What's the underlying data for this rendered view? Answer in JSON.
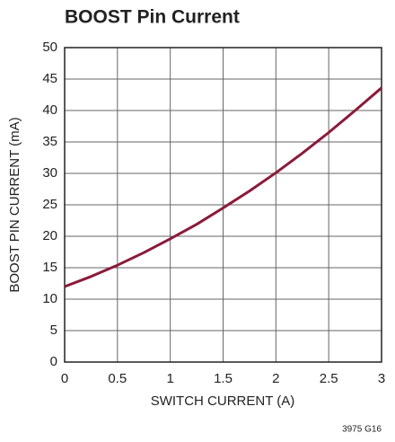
{
  "chart_data": {
    "type": "line",
    "title": "BOOST Pin Current",
    "x_label": "SWITCH CURRENT (A)",
    "y_label": "BOOST PIN CURRENT (mA)",
    "note": "3975 G16",
    "x": [
      0,
      0.25,
      0.5,
      0.75,
      1,
      1.25,
      1.5,
      1.75,
      2,
      2.25,
      2.5,
      2.75,
      3
    ],
    "values": [
      12,
      13.6,
      15.4,
      17.4,
      19.6,
      21.9,
      24.5,
      27.2,
      30.1,
      33.2,
      36.5,
      40,
      43.6
    ],
    "color": "#8b1a3a",
    "xlim": [
      0,
      3
    ],
    "xticks": [
      0,
      0.5,
      1,
      1.5,
      2,
      2.5,
      3
    ],
    "ylim": [
      0,
      50
    ],
    "yticks": [
      0,
      5,
      10,
      15,
      20,
      25,
      30,
      35,
      40,
      45,
      50
    ],
    "grid": true
  }
}
